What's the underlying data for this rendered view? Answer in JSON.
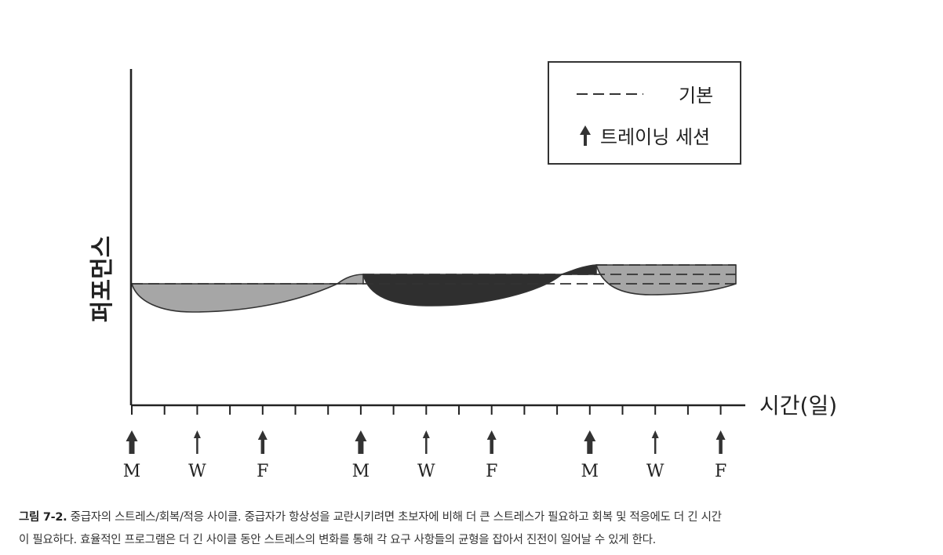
{
  "legend": {
    "baseline_label": "기본",
    "session_label": "트레이닝 세션"
  },
  "axis": {
    "ylabel": "퍼포먼스",
    "xlabel": "시간(일)"
  },
  "sessions": [
    {
      "day": 0,
      "label": "M",
      "intensity": "heavy"
    },
    {
      "day": 2,
      "label": "W",
      "intensity": "light"
    },
    {
      "day": 4,
      "label": "F",
      "intensity": "medium"
    },
    {
      "day": 7,
      "label": "M",
      "intensity": "heavy"
    },
    {
      "day": 9,
      "label": "W",
      "intensity": "light"
    },
    {
      "day": 11,
      "label": "F",
      "intensity": "medium"
    },
    {
      "day": 14,
      "label": "M",
      "intensity": "heavy"
    },
    {
      "day": 16,
      "label": "W",
      "intensity": "light"
    },
    {
      "day": 18,
      "label": "F",
      "intensity": "medium"
    }
  ],
  "colors": {
    "light_fill": "#a6a6a6",
    "dark_fill": "#2f2f2f",
    "ink": "#333333"
  },
  "caption": {
    "figure_label": "그림 7-2.",
    "line1": "중급자의 스트레스/회복/적응 사이클. 중급자가 항상성을 교란시키려면 초보자에 비해 더 큰 스트레스가 필요하고 회복 및 적응에도 더 긴 시간",
    "line2": "이 필요하다. 효율적인 프로그램은 더 긴 사이클 동안 스트레스의 변화를 통해 각 요구 사항들의 균형을 잡아서 진전이 일어날 수 있게 한다."
  }
}
